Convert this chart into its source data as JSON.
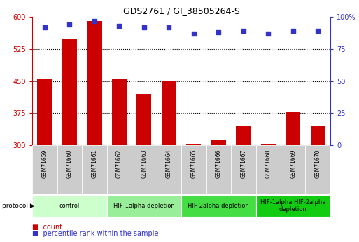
{
  "title": "GDS2761 / GI_38505264-S",
  "samples": [
    "GSM71659",
    "GSM71660",
    "GSM71661",
    "GSM71662",
    "GSM71663",
    "GSM71664",
    "GSM71665",
    "GSM71666",
    "GSM71667",
    "GSM71668",
    "GSM71669",
    "GSM71670"
  ],
  "counts": [
    455,
    548,
    590,
    455,
    420,
    450,
    302,
    312,
    345,
    303,
    378,
    345
  ],
  "percentile_ranks": [
    92,
    94,
    97,
    93,
    92,
    92,
    87,
    88,
    89,
    87,
    89,
    89
  ],
  "ymin": 300,
  "ymax": 600,
  "yticks": [
    300,
    375,
    450,
    525,
    600
  ],
  "right_yticks": [
    0,
    25,
    50,
    75,
    100
  ],
  "right_yticklabels": [
    "0",
    "25",
    "50",
    "75",
    "100%"
  ],
  "bar_color": "#CC0000",
  "dot_color": "#3333CC",
  "protocol_groups": [
    {
      "label": "control",
      "start": 0,
      "end": 3,
      "color": "#ccffcc"
    },
    {
      "label": "HIF-1alpha depletion",
      "start": 3,
      "end": 6,
      "color": "#99ee99"
    },
    {
      "label": "HIF-2alpha depletion",
      "start": 6,
      "end": 9,
      "color": "#44dd44"
    },
    {
      "label": "HIF-1alpha HIF-2alpha\ndepletion",
      "start": 9,
      "end": 12,
      "color": "#11cc11"
    }
  ],
  "left_axis_color": "#CC0000",
  "right_axis_color": "#3333CC",
  "plot_bg_color": "#ffffff",
  "xtick_bg_color": "#cccccc",
  "gridline_color": "#000000"
}
